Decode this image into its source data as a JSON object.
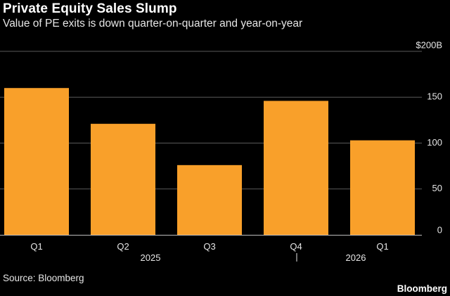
{
  "header": {
    "title": "Private Equity Sales Slump",
    "subtitle": "Value of PE exits is down quarter-on-quarter and year-on-year"
  },
  "footer": {
    "source": "Source: Bloomberg",
    "brand": "Bloomberg"
  },
  "colors": {
    "background": "#000000",
    "bar": "#f9a02a",
    "grid": "#5a5a5a",
    "text": "#e6e6e6"
  },
  "chart_data": {
    "type": "bar",
    "title": "Private Equity Sales Slump",
    "subtitle": "Value of PE exits is down quarter-on-quarter and year-on-year",
    "categories": [
      "Q1",
      "Q2",
      "Q3",
      "Q4",
      "Q1"
    ],
    "values": [
      160,
      121,
      76,
      146,
      103
    ],
    "year_labels": [
      "2025",
      "2026"
    ],
    "y_ticks": [
      0,
      50,
      100,
      150,
      200
    ],
    "y_tick_labels": [
      "0",
      "50",
      "100",
      "150",
      "$200B"
    ],
    "ylim": [
      0,
      200
    ],
    "xlabel": "",
    "ylabel": "",
    "grid": true,
    "y_axis_side": "right",
    "source": "Source: Bloomberg"
  }
}
